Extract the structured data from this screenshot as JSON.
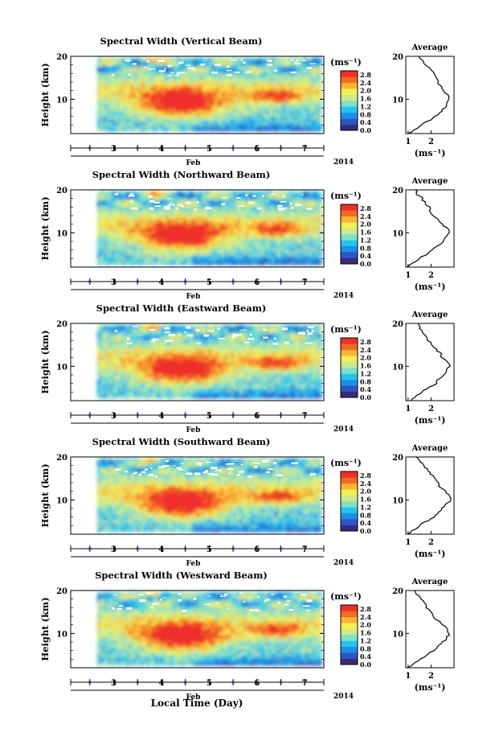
{
  "figure": {
    "xlabel": "Local Time (Day)",
    "month_label": "Feb",
    "year_label": "2014"
  },
  "colorbar": {
    "unit": "(ms⁻¹)",
    "ticks": [
      "0.0",
      "0.4",
      "0.8",
      "1.2",
      "1.6",
      "2.0",
      "2.4",
      "2.8"
    ],
    "range": [
      0.0,
      3.0
    ],
    "colors": [
      "#3a2a7a",
      "#2b55c9",
      "#1f8ee6",
      "#25c4ee",
      "#7fe0c8",
      "#c8ec8a",
      "#f5ee55",
      "#fbb530",
      "#f36a22",
      "#ee2f2a"
    ]
  },
  "chart_data": [
    {
      "type": "heatmap",
      "title": "Spectral Width (Vertical Beam)",
      "ylabel": "Height (km)",
      "x_axis": "Local Time (Day)",
      "xlim": [
        2.1,
        7.4
      ],
      "data_xlim": [
        2.65,
        7.3
      ],
      "ylim": [
        2,
        20
      ],
      "xticks": [
        3,
        4,
        5,
        6,
        7
      ],
      "yticks": [
        10,
        20
      ],
      "value_unit": "ms⁻¹",
      "value_range": [
        0,
        3.0
      ],
      "profile": {
        "title": "Average",
        "xlabel": "(ms⁻¹)",
        "xticks": [
          1,
          2
        ],
        "xlim": [
          0.9,
          3.0
        ],
        "yticks": [
          10,
          20
        ],
        "height": [
          2,
          4,
          6,
          8,
          9,
          10,
          11,
          12,
          13,
          14,
          16,
          18,
          19,
          20
        ],
        "value": [
          1.0,
          1.6,
          2.2,
          2.6,
          2.7,
          2.8,
          2.7,
          2.5,
          2.4,
          2.3,
          2.1,
          1.8,
          1.6,
          1.5
        ]
      }
    },
    {
      "type": "heatmap",
      "title": "Spectral Width (Northward Beam)",
      "ylabel": "Height (km)",
      "x_axis": "Local Time (Day)",
      "xlim": [
        2.1,
        7.4
      ],
      "data_xlim": [
        2.65,
        7.3
      ],
      "ylim": [
        2,
        20
      ],
      "xticks": [
        3,
        4,
        5,
        6,
        7
      ],
      "yticks": [
        10,
        20
      ],
      "value_unit": "ms⁻¹",
      "value_range": [
        0,
        3.0
      ],
      "profile": {
        "title": "Average",
        "xlabel": "(ms⁻¹)",
        "xticks": [
          1,
          2
        ],
        "xlim": [
          0.9,
          3.0
        ],
        "yticks": [
          10,
          20
        ],
        "height": [
          2,
          4,
          6,
          8,
          9,
          10,
          11,
          12,
          13,
          14,
          16,
          18,
          19,
          20
        ],
        "value": [
          1.0,
          1.5,
          2.1,
          2.5,
          2.7,
          2.8,
          2.7,
          2.5,
          2.3,
          2.1,
          1.9,
          1.6,
          1.4,
          1.3
        ]
      }
    },
    {
      "type": "heatmap",
      "title": "Spectral Width (Eastward Beam)",
      "ylabel": "Height (km)",
      "x_axis": "Local Time (Day)",
      "xlim": [
        2.1,
        7.4
      ],
      "data_xlim": [
        2.65,
        7.3
      ],
      "ylim": [
        2,
        20
      ],
      "xticks": [
        3,
        4,
        5,
        6,
        7
      ],
      "yticks": [
        10,
        20
      ],
      "value_unit": "ms⁻¹",
      "value_range": [
        0,
        3.0
      ],
      "profile": {
        "title": "Average",
        "xlabel": "(ms⁻¹)",
        "xticks": [
          1,
          2
        ],
        "xlim": [
          0.9,
          3.0
        ],
        "yticks": [
          10,
          20
        ],
        "height": [
          2,
          4,
          6,
          8,
          9,
          10,
          11,
          12,
          13,
          14,
          16,
          18,
          19,
          20
        ],
        "value": [
          1.1,
          1.6,
          2.2,
          2.5,
          2.7,
          2.8,
          2.7,
          2.5,
          2.4,
          2.2,
          1.9,
          1.6,
          1.5,
          1.4
        ]
      }
    },
    {
      "type": "heatmap",
      "title": "Spectral Width (Southward Beam)",
      "ylabel": "Height (km)",
      "x_axis": "Local Time (Day)",
      "xlim": [
        2.1,
        7.4
      ],
      "data_xlim": [
        2.65,
        7.3
      ],
      "ylim": [
        2,
        20
      ],
      "xticks": [
        3,
        4,
        5,
        6,
        7
      ],
      "yticks": [
        10,
        20
      ],
      "value_unit": "ms⁻¹",
      "value_range": [
        0,
        3.0
      ],
      "profile": {
        "title": "Average",
        "xlabel": "(ms⁻¹)",
        "xticks": [
          1,
          2
        ],
        "xlim": [
          0.9,
          3.0
        ],
        "yticks": [
          10,
          20
        ],
        "height": [
          2,
          4,
          6,
          8,
          9,
          10,
          11,
          12,
          13,
          14,
          16,
          18,
          19,
          20
        ],
        "value": [
          1.0,
          1.5,
          2.1,
          2.5,
          2.7,
          2.8,
          2.8,
          2.6,
          2.4,
          2.3,
          2.0,
          1.7,
          1.5,
          1.4
        ]
      }
    },
    {
      "type": "heatmap",
      "title": "Spectral Width (Westward Beam)",
      "ylabel": "Height (km)",
      "x_axis": "Local Time (Day)",
      "xlim": [
        2.1,
        7.4
      ],
      "data_xlim": [
        2.65,
        7.3
      ],
      "ylim": [
        2,
        20
      ],
      "xticks": [
        3,
        4,
        5,
        6,
        7
      ],
      "yticks": [
        10,
        20
      ],
      "value_unit": "ms⁻¹",
      "value_range": [
        0,
        3.0
      ],
      "profile": {
        "title": "Average",
        "xlabel": "(ms⁻¹)",
        "xticks": [
          1,
          2
        ],
        "xlim": [
          0.9,
          3.0
        ],
        "yticks": [
          10,
          20
        ],
        "height": [
          2,
          4,
          6,
          8,
          9,
          10,
          11,
          12,
          13,
          14,
          16,
          18,
          19,
          20
        ],
        "value": [
          1.0,
          1.5,
          2.1,
          2.5,
          2.7,
          2.8,
          2.7,
          2.5,
          2.3,
          2.1,
          1.8,
          1.6,
          1.4,
          1.3
        ]
      }
    }
  ]
}
